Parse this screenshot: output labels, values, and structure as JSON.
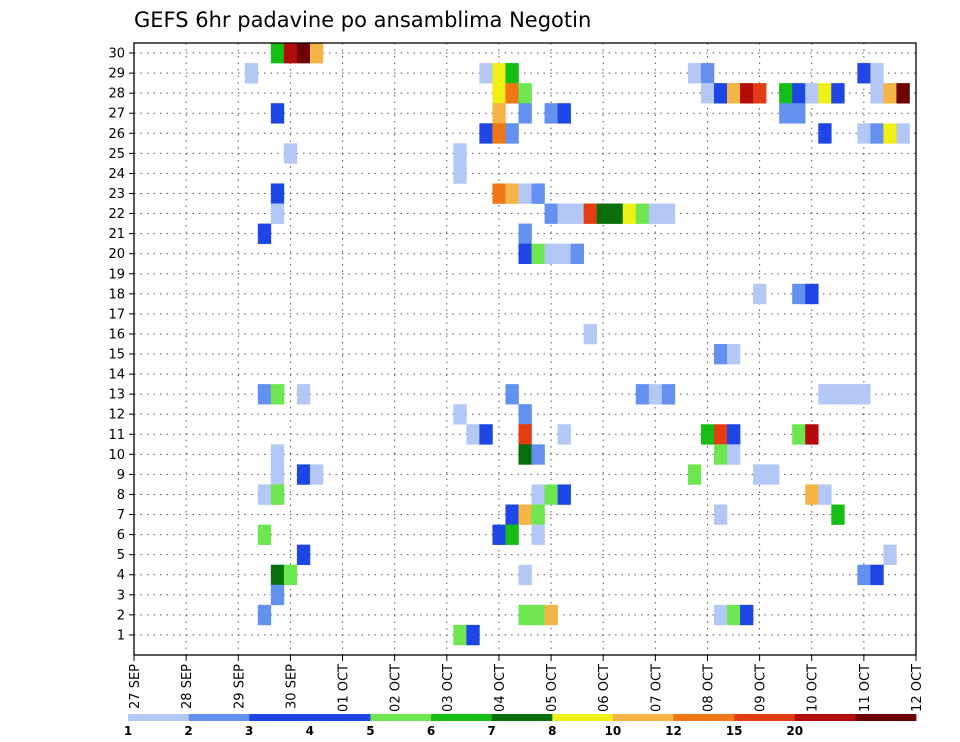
{
  "chart_data": {
    "type": "heatmap",
    "title": "GEFS 6hr padavine po ansamblima Negotin",
    "xlabel": "",
    "ylabel": "",
    "x_ticks": [
      "27 SEP",
      "28 SEP",
      "29 SEP",
      "30 SEP",
      "01 OCT",
      "02 OCT",
      "03 OCT",
      "04 OCT",
      "05 OCT",
      "06 OCT",
      "07 OCT",
      "08 OCT",
      "09 OCT",
      "10 OCT",
      "11 OCT",
      "12 OCT"
    ],
    "x_range": [
      "2020-09-27 00Z",
      "2020-10-12 00Z"
    ],
    "x_step_hours": 6,
    "y_ticks": [
      1,
      2,
      3,
      4,
      5,
      6,
      7,
      8,
      9,
      10,
      11,
      12,
      13,
      14,
      15,
      16,
      17,
      18,
      19,
      20,
      21,
      22,
      23,
      24,
      25,
      26,
      27,
      28,
      29,
      30
    ],
    "y_range": [
      1,
      30
    ],
    "grid": true,
    "legend_placement": "bottom",
    "color_scale": {
      "colors": [
        "#b4c8f5",
        "#6490f0",
        "#1e46e6",
        "#1e46e6",
        "#6ee650",
        "#14be14",
        "#0a6e0a",
        "#f0f014",
        "#f5b446",
        "#f07814",
        "#e63c14",
        "#b40a0a",
        "#6e0000"
      ],
      "labels": [
        "1",
        "2",
        "3",
        "4",
        "5",
        "6",
        "7",
        "8",
        "10",
        "12",
        "15",
        "20",
        ""
      ]
    },
    "bins": [
      {
        "min": 1,
        "color": "#b4c8f5"
      },
      {
        "min": 2,
        "color": "#6490f0"
      },
      {
        "min": 3,
        "color": "#1e46e6"
      },
      {
        "min": 5,
        "color": "#6ee650"
      },
      {
        "min": 6,
        "color": "#14be14"
      },
      {
        "min": 7,
        "color": "#0a6e0a"
      },
      {
        "min": 8,
        "color": "#f0f014"
      },
      {
        "min": 10,
        "color": "#f5b446"
      },
      {
        "min": 12,
        "color": "#f07814"
      },
      {
        "min": 15,
        "color": "#e63c14"
      },
      {
        "min": 20,
        "color": "#b40a0a"
      },
      {
        "min": 25,
        "color": "#6e0000"
      }
    ],
    "points": [
      {
        "member": 30,
        "x": "29 SEP 18Z",
        "value": 6
      },
      {
        "member": 30,
        "x": "30 SEP 00Z",
        "value": 20
      },
      {
        "member": 30,
        "x": "30 SEP 06Z",
        "value": 25
      },
      {
        "member": 30,
        "x": "30 SEP 12Z",
        "value": 10
      },
      {
        "member": 29,
        "x": "29 SEP 06Z",
        "value": 1
      },
      {
        "member": 29,
        "x": "03 OCT 18Z",
        "value": 1
      },
      {
        "member": 29,
        "x": "04 OCT 00Z",
        "value": 8
      },
      {
        "member": 29,
        "x": "04 OCT 06Z",
        "value": 6
      },
      {
        "member": 29,
        "x": "07 OCT 18Z",
        "value": 1
      },
      {
        "member": 29,
        "x": "08 OCT 00Z",
        "value": 2
      },
      {
        "member": 29,
        "x": "11 OCT 00Z",
        "value": 3
      },
      {
        "member": 29,
        "x": "11 OCT 06Z",
        "value": 1
      },
      {
        "member": 28,
        "x": "04 OCT 00Z",
        "value": 8
      },
      {
        "member": 28,
        "x": "04 OCT 06Z",
        "value": 12
      },
      {
        "member": 28,
        "x": "04 OCT 12Z",
        "value": 5
      },
      {
        "member": 28,
        "x": "08 OCT 00Z",
        "value": 1
      },
      {
        "member": 28,
        "x": "08 OCT 06Z",
        "value": 3
      },
      {
        "member": 28,
        "x": "08 OCT 12Z",
        "value": 10
      },
      {
        "member": 28,
        "x": "08 OCT 18Z",
        "value": 20
      },
      {
        "member": 28,
        "x": "09 OCT 00Z",
        "value": 15
      },
      {
        "member": 28,
        "x": "09 OCT 12Z",
        "value": 6
      },
      {
        "member": 28,
        "x": "09 OCT 18Z",
        "value": 3
      },
      {
        "member": 28,
        "x": "10 OCT 00Z",
        "value": 1
      },
      {
        "member": 28,
        "x": "10 OCT 06Z",
        "value": 8
      },
      {
        "member": 28,
        "x": "10 OCT 12Z",
        "value": 3
      },
      {
        "member": 28,
        "x": "11 OCT 06Z",
        "value": 1
      },
      {
        "member": 28,
        "x": "11 OCT 12Z",
        "value": 10
      },
      {
        "member": 28,
        "x": "11 OCT 18Z",
        "value": 25
      },
      {
        "member": 27,
        "x": "29 SEP 18Z",
        "value": 3
      },
      {
        "member": 27,
        "x": "04 OCT 00Z",
        "value": 10
      },
      {
        "member": 27,
        "x": "04 OCT 12Z",
        "value": 2
      },
      {
        "member": 27,
        "x": "05 OCT 00Z",
        "value": 2
      },
      {
        "member": 27,
        "x": "05 OCT 06Z",
        "value": 3
      },
      {
        "member": 27,
        "x": "09 OCT 12Z",
        "value": 2
      },
      {
        "member": 27,
        "x": "09 OCT 18Z",
        "value": 2
      },
      {
        "member": 26,
        "x": "03 OCT 18Z",
        "value": 3
      },
      {
        "member": 26,
        "x": "04 OCT 00Z",
        "value": 12
      },
      {
        "member": 26,
        "x": "04 OCT 06Z",
        "value": 2
      },
      {
        "member": 26,
        "x": "10 OCT 06Z",
        "value": 3
      },
      {
        "member": 26,
        "x": "11 OCT 00Z",
        "value": 1
      },
      {
        "member": 26,
        "x": "11 OCT 06Z",
        "value": 2
      },
      {
        "member": 26,
        "x": "11 OCT 12Z",
        "value": 8
      },
      {
        "member": 26,
        "x": "11 OCT 18Z",
        "value": 1
      },
      {
        "member": 25,
        "x": "30 SEP 00Z",
        "value": 1
      },
      {
        "member": 25,
        "x": "03 OCT 06Z",
        "value": 1
      },
      {
        "member": 24,
        "x": "03 OCT 06Z",
        "value": 1
      },
      {
        "member": 23,
        "x": "29 SEP 18Z",
        "value": 3
      },
      {
        "member": 23,
        "x": "04 OCT 00Z",
        "value": 12
      },
      {
        "member": 23,
        "x": "04 OCT 06Z",
        "value": 10
      },
      {
        "member": 23,
        "x": "04 OCT 12Z",
        "value": 1
      },
      {
        "member": 23,
        "x": "04 OCT 18Z",
        "value": 2
      },
      {
        "member": 22,
        "x": "29 SEP 18Z",
        "value": 1
      },
      {
        "member": 22,
        "x": "05 OCT 00Z",
        "value": 2
      },
      {
        "member": 22,
        "x": "05 OCT 06Z",
        "value": 1
      },
      {
        "member": 22,
        "x": "05 OCT 12Z",
        "value": 1
      },
      {
        "member": 22,
        "x": "05 OCT 18Z",
        "value": 15
      },
      {
        "member": 22,
        "x": "06 OCT 00Z",
        "value": 7
      },
      {
        "member": 22,
        "x": "06 OCT 06Z",
        "value": 7
      },
      {
        "member": 22,
        "x": "06 OCT 12Z",
        "value": 8
      },
      {
        "member": 22,
        "x": "06 OCT 18Z",
        "value": 5
      },
      {
        "member": 22,
        "x": "07 OCT 00Z",
        "value": 1
      },
      {
        "member": 22,
        "x": "07 OCT 06Z",
        "value": 1
      },
      {
        "member": 21,
        "x": "29 SEP 12Z",
        "value": 3
      },
      {
        "member": 21,
        "x": "04 OCT 12Z",
        "value": 2
      },
      {
        "member": 20,
        "x": "04 OCT 12Z",
        "value": 3
      },
      {
        "member": 20,
        "x": "04 OCT 18Z",
        "value": 5
      },
      {
        "member": 20,
        "x": "05 OCT 00Z",
        "value": 1
      },
      {
        "member": 20,
        "x": "05 OCT 06Z",
        "value": 1
      },
      {
        "member": 20,
        "x": "05 OCT 12Z",
        "value": 2
      },
      {
        "member": 18,
        "x": "09 OCT 00Z",
        "value": 1
      },
      {
        "member": 18,
        "x": "09 OCT 18Z",
        "value": 2
      },
      {
        "member": 18,
        "x": "10 OCT 00Z",
        "value": 3
      },
      {
        "member": 16,
        "x": "05 OCT 18Z",
        "value": 1
      },
      {
        "member": 15,
        "x": "08 OCT 06Z",
        "value": 2
      },
      {
        "member": 15,
        "x": "08 OCT 12Z",
        "value": 1
      },
      {
        "member": 13,
        "x": "29 SEP 12Z",
        "value": 2
      },
      {
        "member": 13,
        "x": "29 SEP 18Z",
        "value": 5
      },
      {
        "member": 13,
        "x": "30 SEP 06Z",
        "value": 1
      },
      {
        "member": 13,
        "x": "04 OCT 06Z",
        "value": 2
      },
      {
        "member": 13,
        "x": "06 OCT 18Z",
        "value": 2
      },
      {
        "member": 13,
        "x": "07 OCT 00Z",
        "value": 1
      },
      {
        "member": 13,
        "x": "07 OCT 06Z",
        "value": 2
      },
      {
        "member": 13,
        "x": "10 OCT 06Z",
        "value": 1
      },
      {
        "member": 13,
        "x": "10 OCT 12Z",
        "value": 1
      },
      {
        "member": 13,
        "x": "10 OCT 18Z",
        "value": 1
      },
      {
        "member": 13,
        "x": "11 OCT 00Z",
        "value": 1
      },
      {
        "member": 12,
        "x": "03 OCT 06Z",
        "value": 1
      },
      {
        "member": 12,
        "x": "04 OCT 12Z",
        "value": 2
      },
      {
        "member": 11,
        "x": "03 OCT 12Z",
        "value": 1
      },
      {
        "member": 11,
        "x": "03 OCT 18Z",
        "value": 3
      },
      {
        "member": 11,
        "x": "04 OCT 12Z",
        "value": 15
      },
      {
        "member": 11,
        "x": "05 OCT 06Z",
        "value": 1
      },
      {
        "member": 11,
        "x": "08 OCT 00Z",
        "value": 6
      },
      {
        "member": 11,
        "x": "08 OCT 06Z",
        "value": 15
      },
      {
        "member": 11,
        "x": "08 OCT 12Z",
        "value": 3
      },
      {
        "member": 11,
        "x": "09 OCT 18Z",
        "value": 5
      },
      {
        "member": 11,
        "x": "10 OCT 00Z",
        "value": 20
      },
      {
        "member": 10,
        "x": "29 SEP 18Z",
        "value": 1
      },
      {
        "member": 10,
        "x": "04 OCT 12Z",
        "value": 7
      },
      {
        "member": 10,
        "x": "04 OCT 18Z",
        "value": 2
      },
      {
        "member": 10,
        "x": "08 OCT 06Z",
        "value": 5
      },
      {
        "member": 10,
        "x": "08 OCT 12Z",
        "value": 1
      },
      {
        "member": 9,
        "x": "29 SEP 18Z",
        "value": 1
      },
      {
        "member": 9,
        "x": "30 SEP 06Z",
        "value": 3
      },
      {
        "member": 9,
        "x": "30 SEP 12Z",
        "value": 1
      },
      {
        "member": 9,
        "x": "07 OCT 18Z",
        "value": 5
      },
      {
        "member": 9,
        "x": "09 OCT 00Z",
        "value": 1
      },
      {
        "member": 9,
        "x": "09 OCT 06Z",
        "value": 1
      },
      {
        "member": 8,
        "x": "29 SEP 12Z",
        "value": 1
      },
      {
        "member": 8,
        "x": "29 SEP 18Z",
        "value": 5
      },
      {
        "member": 8,
        "x": "04 OCT 18Z",
        "value": 1
      },
      {
        "member": 8,
        "x": "05 OCT 00Z",
        "value": 5
      },
      {
        "member": 8,
        "x": "05 OCT 06Z",
        "value": 3
      },
      {
        "member": 8,
        "x": "10 OCT 00Z",
        "value": 10
      },
      {
        "member": 8,
        "x": "10 OCT 06Z",
        "value": 1
      },
      {
        "member": 7,
        "x": "04 OCT 06Z",
        "value": 3
      },
      {
        "member": 7,
        "x": "04 OCT 12Z",
        "value": 10
      },
      {
        "member": 7,
        "x": "04 OCT 18Z",
        "value": 5
      },
      {
        "member": 7,
        "x": "08 OCT 06Z",
        "value": 1
      },
      {
        "member": 7,
        "x": "10 OCT 12Z",
        "value": 6
      },
      {
        "member": 6,
        "x": "29 SEP 12Z",
        "value": 5
      },
      {
        "member": 6,
        "x": "04 OCT 00Z",
        "value": 3
      },
      {
        "member": 6,
        "x": "04 OCT 06Z",
        "value": 6
      },
      {
        "member": 6,
        "x": "04 OCT 18Z",
        "value": 1
      },
      {
        "member": 5,
        "x": "30 SEP 06Z",
        "value": 3
      },
      {
        "member": 5,
        "x": "11 OCT 12Z",
        "value": 1
      },
      {
        "member": 4,
        "x": "29 SEP 18Z",
        "value": 7
      },
      {
        "member": 4,
        "x": "30 SEP 00Z",
        "value": 5
      },
      {
        "member": 4,
        "x": "04 OCT 12Z",
        "value": 1
      },
      {
        "member": 4,
        "x": "11 OCT 00Z",
        "value": 2
      },
      {
        "member": 4,
        "x": "11 OCT 06Z",
        "value": 3
      },
      {
        "member": 3,
        "x": "29 SEP 18Z",
        "value": 2
      },
      {
        "member": 2,
        "x": "29 SEP 12Z",
        "value": 2
      },
      {
        "member": 2,
        "x": "04 OCT 12Z",
        "value": 5
      },
      {
        "member": 2,
        "x": "04 OCT 18Z",
        "value": 5
      },
      {
        "member": 2,
        "x": "05 OCT 00Z",
        "value": 10
      },
      {
        "member": 2,
        "x": "08 OCT 06Z",
        "value": 1
      },
      {
        "member": 2,
        "x": "08 OCT 12Z",
        "value": 5
      },
      {
        "member": 2,
        "x": "08 OCT 18Z",
        "value": 3
      },
      {
        "member": 1,
        "x": "03 OCT 06Z",
        "value": 5
      },
      {
        "member": 1,
        "x": "03 OCT 12Z",
        "value": 3
      }
    ]
  }
}
